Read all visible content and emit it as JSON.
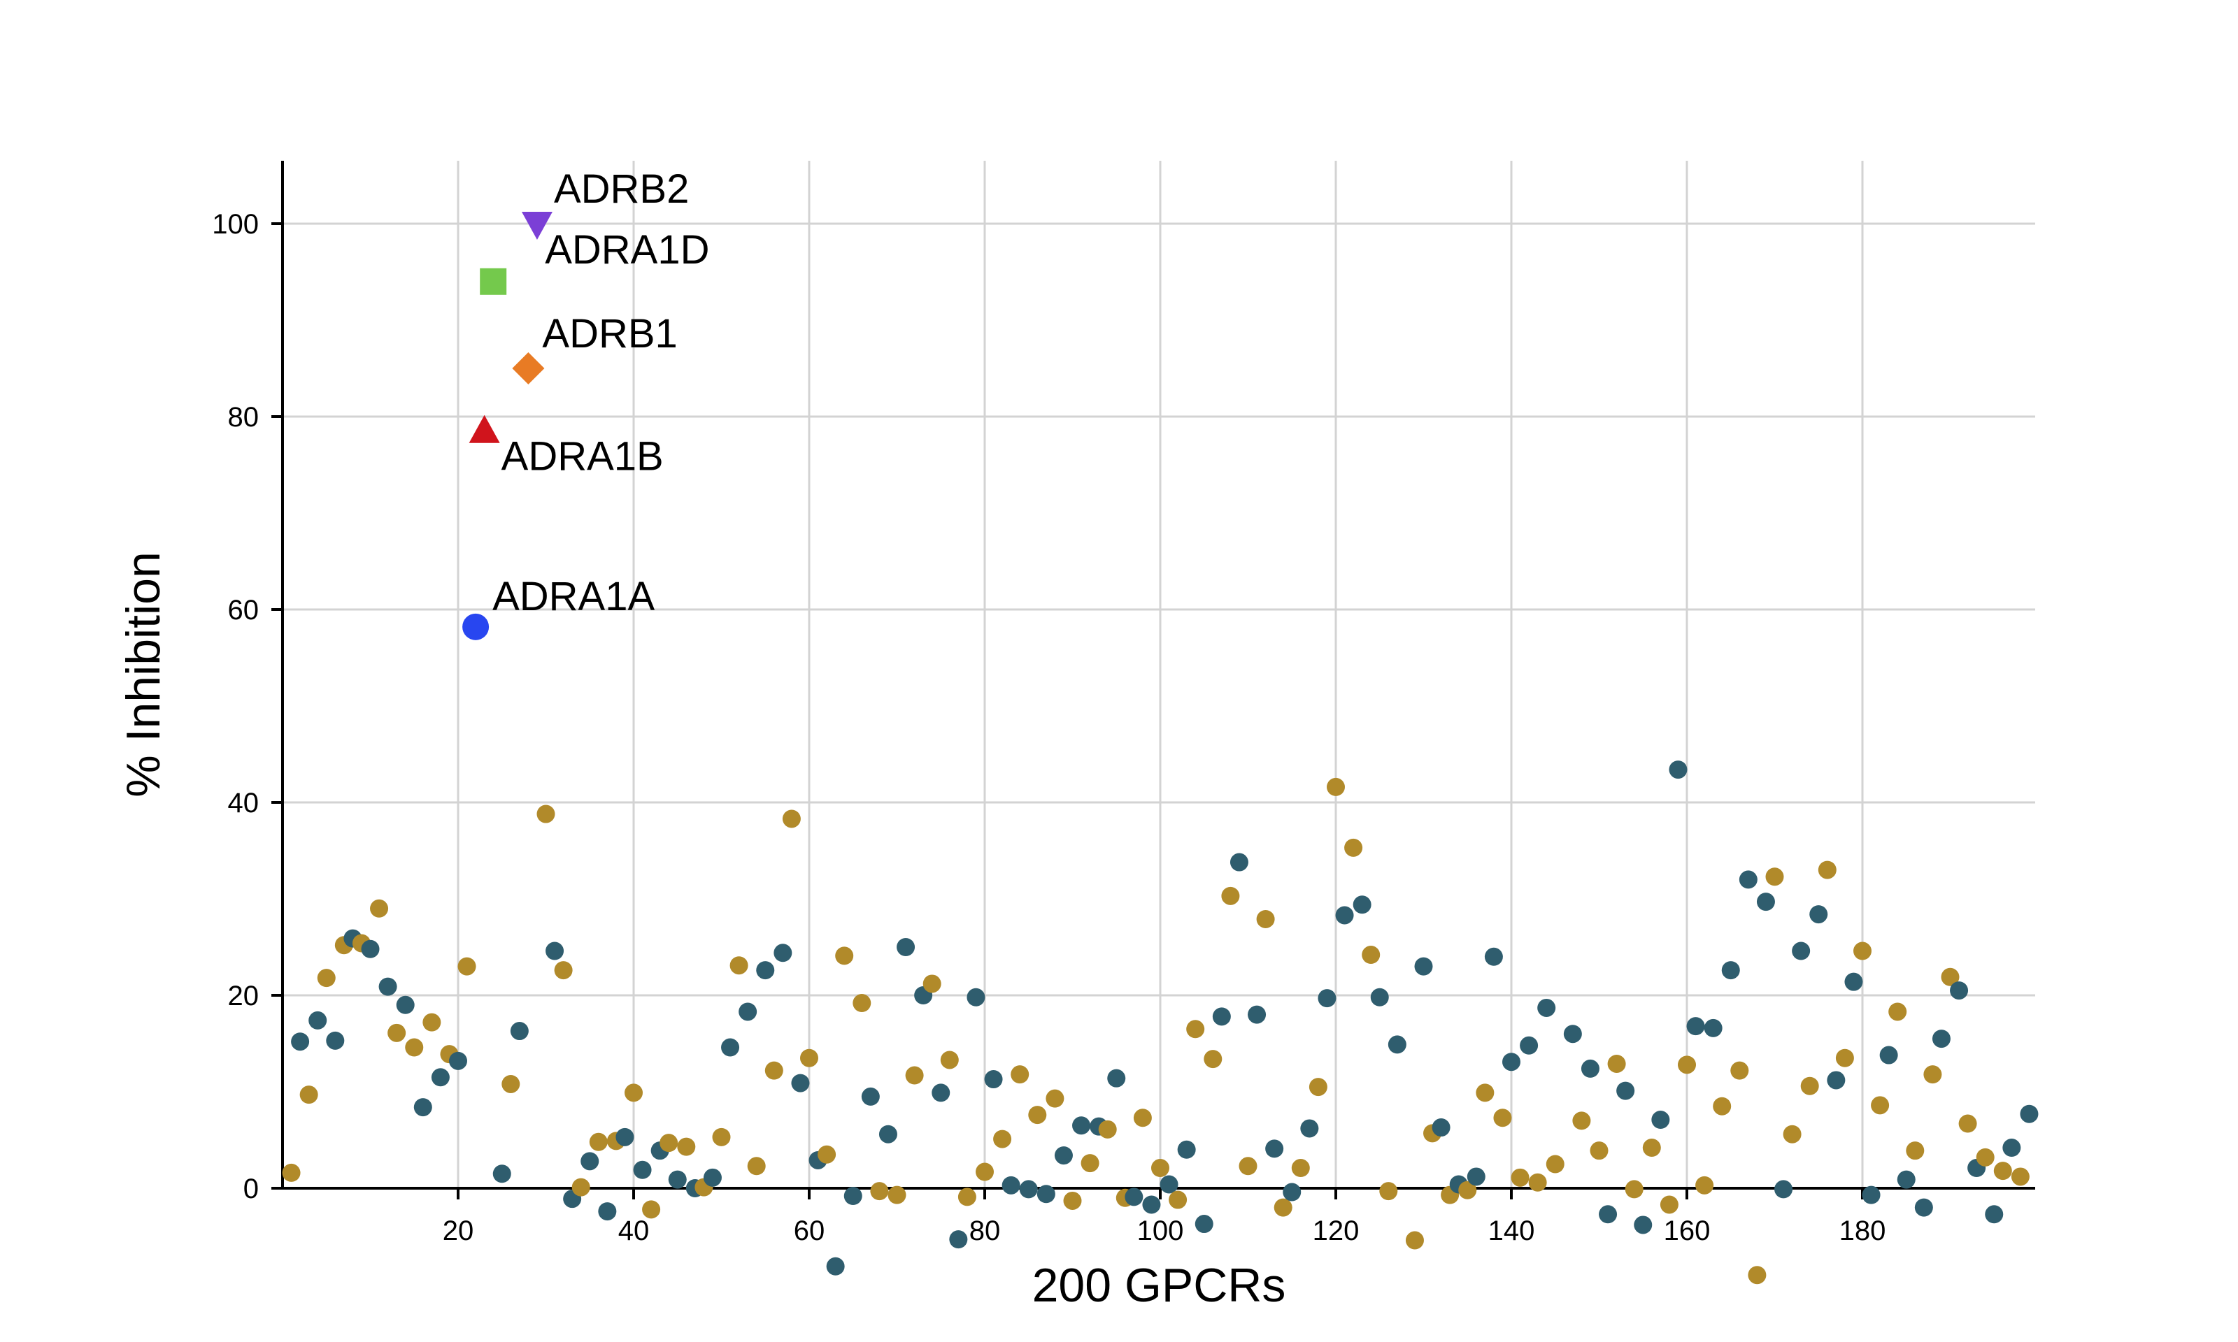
{
  "chart_data": {
    "type": "scatter",
    "xlabel": "200 GPCRs",
    "ylabel": "% Inhibition",
    "xlim": [
      0,
      200
    ],
    "ylim": [
      -7,
      106
    ],
    "xticks": [
      20,
      40,
      60,
      80,
      100,
      120,
      140,
      160,
      180
    ],
    "yticks": [
      0,
      20,
      40,
      60,
      80,
      100
    ],
    "grid": true,
    "colors": {
      "slate": "#2f5d6e",
      "gold": "#b18a2a",
      "ADRB2": "#7b3fd6",
      "ADRA1D": "#74c94c",
      "ADRB1": "#e87b24",
      "ADRA1B": "#d0141c",
      "ADRA1A": "#2846f0"
    },
    "highlighted": [
      {
        "label": "ADRB2",
        "x": 29,
        "y": 100,
        "marker": "triangle-down"
      },
      {
        "label": "ADRA1D",
        "x": 24,
        "y": 94,
        "marker": "square"
      },
      {
        "label": "ADRB1",
        "x": 28,
        "y": 85,
        "marker": "diamond"
      },
      {
        "label": "ADRA1B",
        "x": 23,
        "y": 78.5,
        "marker": "triangle-up"
      },
      {
        "label": "ADRA1A",
        "x": 22,
        "y": 58.2,
        "marker": "circle"
      }
    ],
    "points": [
      {
        "x": 1,
        "y": 1.6,
        "c": "gold"
      },
      {
        "x": 2,
        "y": 15.2,
        "c": "slate"
      },
      {
        "x": 3,
        "y": 9.7,
        "c": "gold"
      },
      {
        "x": 4,
        "y": 17.4,
        "c": "slate"
      },
      {
        "x": 5,
        "y": 21.8,
        "c": "gold"
      },
      {
        "x": 6,
        "y": 15.3,
        "c": "slate"
      },
      {
        "x": 7,
        "y": 25.2,
        "c": "gold"
      },
      {
        "x": 8,
        "y": 25.9,
        "c": "slate"
      },
      {
        "x": 9,
        "y": 25.4,
        "c": "gold"
      },
      {
        "x": 10,
        "y": 24.8,
        "c": "slate"
      },
      {
        "x": 11,
        "y": 29.0,
        "c": "gold"
      },
      {
        "x": 12,
        "y": 20.9,
        "c": "slate"
      },
      {
        "x": 13,
        "y": 16.1,
        "c": "gold"
      },
      {
        "x": 14,
        "y": 19.0,
        "c": "slate"
      },
      {
        "x": 15,
        "y": 14.6,
        "c": "gold"
      },
      {
        "x": 16,
        "y": 8.4,
        "c": "slate"
      },
      {
        "x": 17,
        "y": 17.2,
        "c": "gold"
      },
      {
        "x": 18,
        "y": 11.5,
        "c": "slate"
      },
      {
        "x": 19,
        "y": 13.9,
        "c": "gold"
      },
      {
        "x": 20,
        "y": 13.2,
        "c": "slate"
      },
      {
        "x": 21,
        "y": 23.0,
        "c": "gold"
      },
      {
        "x": 25,
        "y": 1.5,
        "c": "slate"
      },
      {
        "x": 26,
        "y": 10.8,
        "c": "gold"
      },
      {
        "x": 27,
        "y": 16.3,
        "c": "slate"
      },
      {
        "x": 30,
        "y": 38.8,
        "c": "gold"
      },
      {
        "x": 31,
        "y": 24.6,
        "c": "slate"
      },
      {
        "x": 32,
        "y": 22.6,
        "c": "gold"
      },
      {
        "x": 33,
        "y": -1.1,
        "c": "slate"
      },
      {
        "x": 34,
        "y": 0.1,
        "c": "gold"
      },
      {
        "x": 35,
        "y": 2.8,
        "c": "slate"
      },
      {
        "x": 36,
        "y": 4.8,
        "c": "gold"
      },
      {
        "x": 37,
        "y": -2.4,
        "c": "slate"
      },
      {
        "x": 38,
        "y": 4.9,
        "c": "gold"
      },
      {
        "x": 39,
        "y": 5.3,
        "c": "slate"
      },
      {
        "x": 40,
        "y": 9.9,
        "c": "gold"
      },
      {
        "x": 41,
        "y": 1.9,
        "c": "slate"
      },
      {
        "x": 42,
        "y": -2.2,
        "c": "gold"
      },
      {
        "x": 43,
        "y": 3.9,
        "c": "slate"
      },
      {
        "x": 44,
        "y": 4.7,
        "c": "gold"
      },
      {
        "x": 45,
        "y": 0.9,
        "c": "slate"
      },
      {
        "x": 46,
        "y": 4.3,
        "c": "gold"
      },
      {
        "x": 47,
        "y": 0.0,
        "c": "slate"
      },
      {
        "x": 48,
        "y": 0.1,
        "c": "gold"
      },
      {
        "x": 49,
        "y": 1.1,
        "c": "slate"
      },
      {
        "x": 50,
        "y": 5.3,
        "c": "gold"
      },
      {
        "x": 51,
        "y": 14.6,
        "c": "slate"
      },
      {
        "x": 52,
        "y": 23.1,
        "c": "gold"
      },
      {
        "x": 53,
        "y": 18.3,
        "c": "slate"
      },
      {
        "x": 54,
        "y": 2.3,
        "c": "gold"
      },
      {
        "x": 55,
        "y": 22.6,
        "c": "slate"
      },
      {
        "x": 56,
        "y": 12.2,
        "c": "gold"
      },
      {
        "x": 57,
        "y": 24.4,
        "c": "slate"
      },
      {
        "x": 58,
        "y": 38.3,
        "c": "gold"
      },
      {
        "x": 59,
        "y": 10.9,
        "c": "slate"
      },
      {
        "x": 60,
        "y": 13.5,
        "c": "gold"
      },
      {
        "x": 61,
        "y": 2.9,
        "c": "slate"
      },
      {
        "x": 62,
        "y": 3.5,
        "c": "gold"
      },
      {
        "x": 63,
        "y": -8.1,
        "c": "slate"
      },
      {
        "x": 64,
        "y": 24.1,
        "c": "gold"
      },
      {
        "x": 65,
        "y": -0.8,
        "c": "slate"
      },
      {
        "x": 66,
        "y": 19.2,
        "c": "gold"
      },
      {
        "x": 67,
        "y": 9.5,
        "c": "slate"
      },
      {
        "x": 68,
        "y": -0.3,
        "c": "gold"
      },
      {
        "x": 69,
        "y": 5.6,
        "c": "slate"
      },
      {
        "x": 70,
        "y": -0.7,
        "c": "gold"
      },
      {
        "x": 71,
        "y": 25.0,
        "c": "slate"
      },
      {
        "x": 72,
        "y": 11.7,
        "c": "gold"
      },
      {
        "x": 73,
        "y": 20.0,
        "c": "slate"
      },
      {
        "x": 74,
        "y": 21.2,
        "c": "gold"
      },
      {
        "x": 75,
        "y": 9.9,
        "c": "slate"
      },
      {
        "x": 76,
        "y": 13.3,
        "c": "gold"
      },
      {
        "x": 77,
        "y": -5.3,
        "c": "slate"
      },
      {
        "x": 78,
        "y": -0.9,
        "c": "gold"
      },
      {
        "x": 79,
        "y": 19.8,
        "c": "slate"
      },
      {
        "x": 80,
        "y": 1.7,
        "c": "gold"
      },
      {
        "x": 81,
        "y": 11.3,
        "c": "slate"
      },
      {
        "x": 82,
        "y": 5.1,
        "c": "gold"
      },
      {
        "x": 83,
        "y": 0.3,
        "c": "slate"
      },
      {
        "x": 84,
        "y": 11.8,
        "c": "gold"
      },
      {
        "x": 85,
        "y": -0.1,
        "c": "slate"
      },
      {
        "x": 86,
        "y": 7.6,
        "c": "gold"
      },
      {
        "x": 87,
        "y": -0.6,
        "c": "slate"
      },
      {
        "x": 88,
        "y": 9.3,
        "c": "gold"
      },
      {
        "x": 89,
        "y": 3.4,
        "c": "slate"
      },
      {
        "x": 90,
        "y": -1.3,
        "c": "gold"
      },
      {
        "x": 91,
        "y": 6.5,
        "c": "slate"
      },
      {
        "x": 92,
        "y": 2.6,
        "c": "gold"
      },
      {
        "x": 93,
        "y": 6.4,
        "c": "slate"
      },
      {
        "x": 94,
        "y": 6.1,
        "c": "gold"
      },
      {
        "x": 95,
        "y": 11.4,
        "c": "slate"
      },
      {
        "x": 96,
        "y": -1.0,
        "c": "gold"
      },
      {
        "x": 97,
        "y": -0.9,
        "c": "slate"
      },
      {
        "x": 98,
        "y": 7.3,
        "c": "gold"
      },
      {
        "x": 99,
        "y": -1.7,
        "c": "slate"
      },
      {
        "x": 100,
        "y": 2.1,
        "c": "gold"
      },
      {
        "x": 101,
        "y": 0.4,
        "c": "slate"
      },
      {
        "x": 102,
        "y": -1.2,
        "c": "gold"
      },
      {
        "x": 103,
        "y": 4.0,
        "c": "slate"
      },
      {
        "x": 104,
        "y": 16.5,
        "c": "gold"
      },
      {
        "x": 105,
        "y": -3.7,
        "c": "slate"
      },
      {
        "x": 106,
        "y": 13.4,
        "c": "gold"
      },
      {
        "x": 107,
        "y": 17.8,
        "c": "slate"
      },
      {
        "x": 108,
        "y": 30.3,
        "c": "gold"
      },
      {
        "x": 109,
        "y": 33.8,
        "c": "slate"
      },
      {
        "x": 110,
        "y": 2.3,
        "c": "gold"
      },
      {
        "x": 111,
        "y": 18.0,
        "c": "slate"
      },
      {
        "x": 112,
        "y": 27.9,
        "c": "gold"
      },
      {
        "x": 113,
        "y": 4.1,
        "c": "slate"
      },
      {
        "x": 114,
        "y": -2.0,
        "c": "gold"
      },
      {
        "x": 115,
        "y": -0.4,
        "c": "slate"
      },
      {
        "x": 116,
        "y": 2.1,
        "c": "gold"
      },
      {
        "x": 117,
        "y": 6.2,
        "c": "slate"
      },
      {
        "x": 118,
        "y": 10.5,
        "c": "gold"
      },
      {
        "x": 119,
        "y": 19.7,
        "c": "slate"
      },
      {
        "x": 120,
        "y": 41.6,
        "c": "gold"
      },
      {
        "x": 121,
        "y": 28.3,
        "c": "slate"
      },
      {
        "x": 122,
        "y": 35.3,
        "c": "gold"
      },
      {
        "x": 123,
        "y": 29.4,
        "c": "slate"
      },
      {
        "x": 124,
        "y": 24.2,
        "c": "gold"
      },
      {
        "x": 125,
        "y": 19.8,
        "c": "slate"
      },
      {
        "x": 126,
        "y": -0.3,
        "c": "gold"
      },
      {
        "x": 127,
        "y": 14.9,
        "c": "slate"
      },
      {
        "x": 129,
        "y": -5.4,
        "c": "gold"
      },
      {
        "x": 130,
        "y": 23.0,
        "c": "slate"
      },
      {
        "x": 131,
        "y": 5.7,
        "c": "gold"
      },
      {
        "x": 132,
        "y": 6.3,
        "c": "slate"
      },
      {
        "x": 133,
        "y": -0.7,
        "c": "gold"
      },
      {
        "x": 134,
        "y": 0.4,
        "c": "slate"
      },
      {
        "x": 135,
        "y": -0.2,
        "c": "gold"
      },
      {
        "x": 136,
        "y": 1.2,
        "c": "slate"
      },
      {
        "x": 137,
        "y": 9.9,
        "c": "gold"
      },
      {
        "x": 138,
        "y": 24.0,
        "c": "slate"
      },
      {
        "x": 139,
        "y": 7.3,
        "c": "gold"
      },
      {
        "x": 140,
        "y": 13.1,
        "c": "slate"
      },
      {
        "x": 141,
        "y": 1.1,
        "c": "gold"
      },
      {
        "x": 142,
        "y": 14.8,
        "c": "slate"
      },
      {
        "x": 143,
        "y": 0.6,
        "c": "gold"
      },
      {
        "x": 144,
        "y": 18.7,
        "c": "slate"
      },
      {
        "x": 145,
        "y": 2.5,
        "c": "gold"
      },
      {
        "x": 147,
        "y": 16.0,
        "c": "slate"
      },
      {
        "x": 148,
        "y": 7.0,
        "c": "gold"
      },
      {
        "x": 149,
        "y": 12.4,
        "c": "slate"
      },
      {
        "x": 150,
        "y": 3.9,
        "c": "gold"
      },
      {
        "x": 151,
        "y": -2.7,
        "c": "slate"
      },
      {
        "x": 152,
        "y": 12.9,
        "c": "gold"
      },
      {
        "x": 153,
        "y": 10.1,
        "c": "slate"
      },
      {
        "x": 154,
        "y": -0.1,
        "c": "gold"
      },
      {
        "x": 155,
        "y": -3.8,
        "c": "slate"
      },
      {
        "x": 156,
        "y": 4.2,
        "c": "gold"
      },
      {
        "x": 157,
        "y": 7.1,
        "c": "slate"
      },
      {
        "x": 158,
        "y": -1.7,
        "c": "gold"
      },
      {
        "x": 159,
        "y": 43.4,
        "c": "slate"
      },
      {
        "x": 160,
        "y": 12.8,
        "c": "gold"
      },
      {
        "x": 161,
        "y": 16.8,
        "c": "slate"
      },
      {
        "x": 162,
        "y": 0.3,
        "c": "gold"
      },
      {
        "x": 163,
        "y": 16.6,
        "c": "slate"
      },
      {
        "x": 164,
        "y": 8.5,
        "c": "gold"
      },
      {
        "x": 165,
        "y": 22.6,
        "c": "slate"
      },
      {
        "x": 166,
        "y": 12.2,
        "c": "gold"
      },
      {
        "x": 167,
        "y": 32.0,
        "c": "slate"
      },
      {
        "x": 168,
        "y": -9.0,
        "c": "gold"
      },
      {
        "x": 169,
        "y": 29.7,
        "c": "slate"
      },
      {
        "x": 170,
        "y": 32.3,
        "c": "gold"
      },
      {
        "x": 171,
        "y": -0.1,
        "c": "slate"
      },
      {
        "x": 172,
        "y": 5.6,
        "c": "gold"
      },
      {
        "x": 173,
        "y": 24.6,
        "c": "slate"
      },
      {
        "x": 174,
        "y": 10.6,
        "c": "gold"
      },
      {
        "x": 175,
        "y": 28.4,
        "c": "slate"
      },
      {
        "x": 176,
        "y": 33.0,
        "c": "gold"
      },
      {
        "x": 177,
        "y": 11.2,
        "c": "slate"
      },
      {
        "x": 178,
        "y": 13.5,
        "c": "gold"
      },
      {
        "x": 179,
        "y": 21.4,
        "c": "slate"
      },
      {
        "x": 180,
        "y": 24.6,
        "c": "gold"
      },
      {
        "x": 181,
        "y": -0.7,
        "c": "slate"
      },
      {
        "x": 182,
        "y": 8.6,
        "c": "gold"
      },
      {
        "x": 183,
        "y": 13.8,
        "c": "slate"
      },
      {
        "x": 184,
        "y": 18.3,
        "c": "gold"
      },
      {
        "x": 185,
        "y": 0.9,
        "c": "slate"
      },
      {
        "x": 186,
        "y": 3.9,
        "c": "gold"
      },
      {
        "x": 187,
        "y": -2.0,
        "c": "slate"
      },
      {
        "x": 188,
        "y": 11.8,
        "c": "gold"
      },
      {
        "x": 189,
        "y": 15.5,
        "c": "slate"
      },
      {
        "x": 190,
        "y": 21.9,
        "c": "gold"
      },
      {
        "x": 191,
        "y": 20.5,
        "c": "slate"
      },
      {
        "x": 192,
        "y": 6.7,
        "c": "gold"
      },
      {
        "x": 193,
        "y": 2.1,
        "c": "slate"
      },
      {
        "x": 194,
        "y": 3.2,
        "c": "gold"
      },
      {
        "x": 195,
        "y": -2.7,
        "c": "slate"
      },
      {
        "x": 196,
        "y": 1.8,
        "c": "gold"
      },
      {
        "x": 197,
        "y": 4.2,
        "c": "slate"
      },
      {
        "x": 198,
        "y": 1.2,
        "c": "gold"
      },
      {
        "x": 199,
        "y": 7.7,
        "c": "slate"
      }
    ]
  }
}
